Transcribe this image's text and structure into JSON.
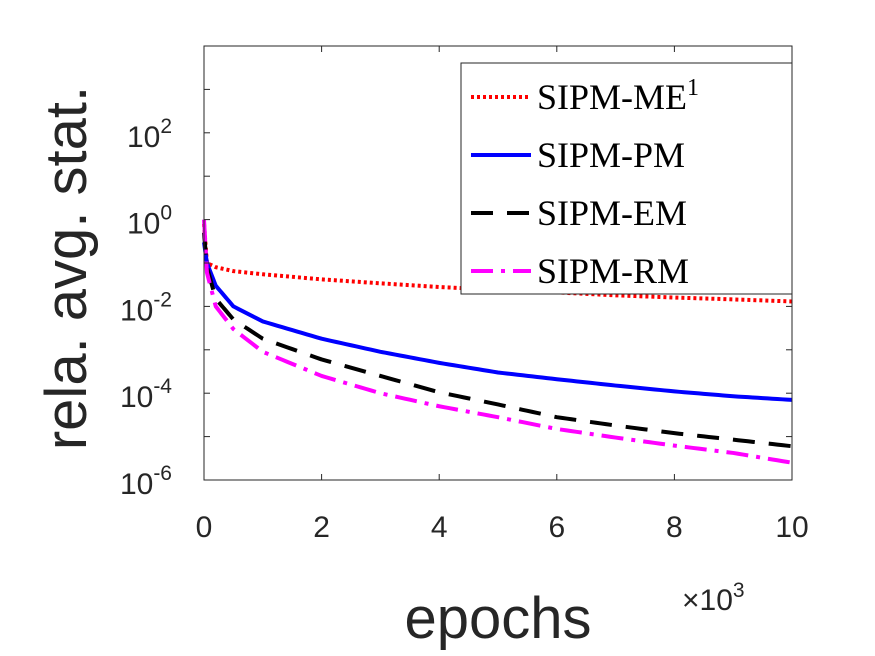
{
  "chart_data": {
    "type": "line",
    "title": "",
    "xlabel": "epochs",
    "ylabel": "rela. avg. stat.",
    "x_multiplier_label": {
      "prefix": "×10",
      "exponent": "3"
    },
    "x_scale": 1000,
    "xlim": [
      0,
      10
    ],
    "ylim_log10": [
      -6,
      4
    ],
    "y_scale": "log",
    "grid": false,
    "legend_position": "top-right",
    "x_ticks": [
      "0",
      "2",
      "4",
      "6",
      "8",
      "10"
    ],
    "y_ticks": [
      {
        "base": "10",
        "exp": "2"
      },
      {
        "base": "10",
        "exp": "0"
      },
      {
        "base": "10",
        "exp": "-2"
      },
      {
        "base": "10",
        "exp": "-4"
      },
      {
        "base": "10",
        "exp": "-6"
      }
    ],
    "series": [
      {
        "name": "SIPM-ME",
        "name_superscript": "1",
        "color": "#ff0000",
        "style": "dotted",
        "x": [
          0,
          0.05,
          0.2,
          0.5,
          1,
          2,
          3,
          4,
          5,
          6,
          7,
          8,
          9,
          10
        ],
        "y": [
          0.8,
          0.1,
          0.08,
          0.065,
          0.055,
          0.042,
          0.034,
          0.028,
          0.024,
          0.021,
          0.018,
          0.016,
          0.0145,
          0.013
        ]
      },
      {
        "name": "SIPM-PM",
        "name_superscript": "",
        "color": "#0000ff",
        "style": "solid",
        "x": [
          0,
          0.05,
          0.2,
          0.5,
          1,
          2,
          3,
          4,
          5,
          6,
          7,
          8,
          9,
          10
        ],
        "y": [
          0.3,
          0.1,
          0.03,
          0.01,
          0.0045,
          0.0018,
          0.0009,
          0.0005,
          0.0003,
          0.00021,
          0.00015,
          0.00011,
          8.5e-05,
          7e-05
        ]
      },
      {
        "name": "SIPM-EM",
        "name_superscript": "",
        "color": "#000000",
        "style": "dashed",
        "x": [
          0,
          0.05,
          0.2,
          0.5,
          1,
          2,
          3,
          4,
          5,
          6,
          7,
          8,
          9,
          10
        ],
        "y": [
          0.5,
          0.08,
          0.015,
          0.005,
          0.0018,
          0.0006,
          0.00025,
          0.000105,
          5.5e-05,
          2.8e-05,
          1.8e-05,
          1.2e-05,
          8.5e-06,
          6e-06
        ]
      },
      {
        "name": "SIPM-RM",
        "name_superscript": "",
        "color": "#ff00ff",
        "style": "dashdot",
        "x": [
          0,
          0.05,
          0.2,
          0.5,
          1,
          2,
          3,
          4,
          5,
          6,
          7,
          8,
          9,
          10
        ],
        "y": [
          1.0,
          0.06,
          0.01,
          0.003,
          0.0009,
          0.00025,
          0.0001,
          5e-05,
          2.8e-05,
          1.5e-05,
          9.5e-06,
          6.2e-06,
          4.2e-06,
          2.5e-06
        ]
      }
    ]
  }
}
